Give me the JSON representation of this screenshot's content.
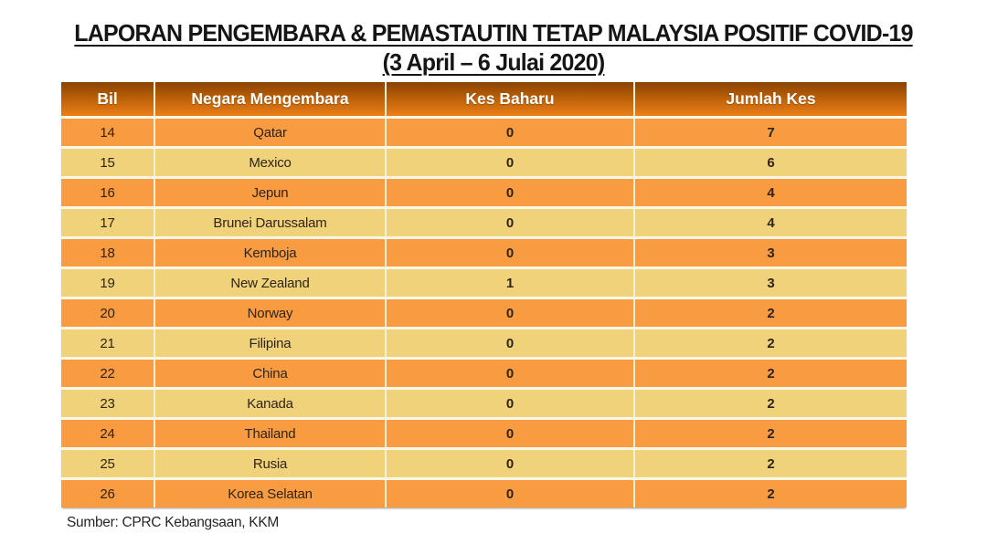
{
  "slide": {
    "title_line1": "LAPORAN PENGEMBARA & PEMASTAUTIN TETAP MALAYSIA POSITIF COVID-19",
    "title_line2": "(3 April – 6 Julai 2020)",
    "source_note": "Sumber: CPRC Kebangsaan, KKM"
  },
  "table": {
    "columns": [
      "Bil",
      "Negara Mengembara",
      "Kes Baharu",
      "Jumlah Kes"
    ],
    "rows": [
      {
        "bil": "14",
        "negara": "Qatar",
        "kes_baharu": "0",
        "jumlah_kes": "7"
      },
      {
        "bil": "15",
        "negara": "Mexico",
        "kes_baharu": "0",
        "jumlah_kes": "6"
      },
      {
        "bil": "16",
        "negara": "Jepun",
        "kes_baharu": "0",
        "jumlah_kes": "4"
      },
      {
        "bil": "17",
        "negara": "Brunei Darussalam",
        "kes_baharu": "0",
        "jumlah_kes": "4"
      },
      {
        "bil": "18",
        "negara": "Kemboja",
        "kes_baharu": "0",
        "jumlah_kes": "3"
      },
      {
        "bil": "19",
        "negara": "New Zealand",
        "kes_baharu": "1",
        "jumlah_kes": "3"
      },
      {
        "bil": "20",
        "negara": "Norway",
        "kes_baharu": "0",
        "jumlah_kes": "2"
      },
      {
        "bil": "21",
        "negara": "Filipina",
        "kes_baharu": "0",
        "jumlah_kes": "2"
      },
      {
        "bil": "22",
        "negara": "China",
        "kes_baharu": "0",
        "jumlah_kes": "2"
      },
      {
        "bil": "23",
        "negara": "Kanada",
        "kes_baharu": "0",
        "jumlah_kes": "2"
      },
      {
        "bil": "24",
        "negara": "Thailand",
        "kes_baharu": "0",
        "jumlah_kes": "2"
      },
      {
        "bil": "25",
        "negara": "Rusia",
        "kes_baharu": "0",
        "jumlah_kes": "2"
      },
      {
        "bil": "26",
        "negara": "Korea Selatan",
        "kes_baharu": "0",
        "jumlah_kes": "2"
      }
    ]
  },
  "colors": {
    "header_gradient_top": "#8A4200",
    "header_gradient_mid": "#B85E08",
    "header_gradient_bottom": "#EC7F17",
    "header_text": "#FFFFFF",
    "row_orange": "#F99B41",
    "row_yellow": "#F0D27A",
    "row_gap": "#FDF8E7",
    "column_divider": "#F7F0D8",
    "body_text": "#2E2418"
  },
  "chart_data": {
    "type": "table",
    "title": "LAPORAN PENGEMBARA & PEMASTAUTIN TETAP MALAYSIA POSITIF COVID-19 (3 April – 6 Julai 2020)",
    "columns": [
      "Bil",
      "Negara Mengembara",
      "Kes Baharu",
      "Jumlah Kes"
    ],
    "rows": [
      [
        14,
        "Qatar",
        0,
        7
      ],
      [
        15,
        "Mexico",
        0,
        6
      ],
      [
        16,
        "Jepun",
        0,
        4
      ],
      [
        17,
        "Brunei Darussalam",
        0,
        4
      ],
      [
        18,
        "Kemboja",
        0,
        3
      ],
      [
        19,
        "New Zealand",
        1,
        3
      ],
      [
        20,
        "Norway",
        0,
        2
      ],
      [
        21,
        "Filipina",
        0,
        2
      ],
      [
        22,
        "China",
        0,
        2
      ],
      [
        23,
        "Kanada",
        0,
        2
      ],
      [
        24,
        "Thailand",
        0,
        2
      ],
      [
        25,
        "Rusia",
        0,
        2
      ],
      [
        26,
        "Korea Selatan",
        0,
        2
      ]
    ],
    "source": "Sumber: CPRC Kebangsaan, KKM"
  }
}
